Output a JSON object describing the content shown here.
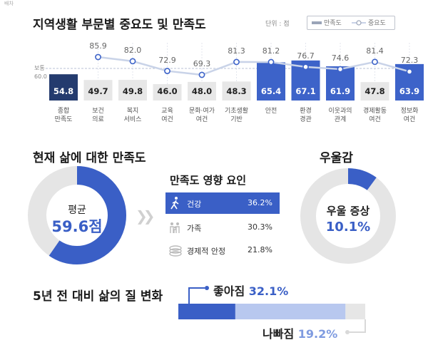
{
  "top_label": "배차",
  "chart1": {
    "title": "지역생활 부문별 중요도 및 만족도",
    "unit_label": "단위 : 점",
    "legend_sat": "만족도",
    "legend_imp": "중요도",
    "ref_label": "보통",
    "ref_value": "60.0"
  },
  "chart_data": [
    {
      "type": "bar",
      "title": "지역생활 부문별 중요도 및 만족도",
      "categories": [
        "종합 만족도",
        "보건 의료",
        "복지 서비스",
        "교육 여건",
        "문화·여가 여건",
        "기초생활 기반",
        "안전",
        "환경 경관",
        "이웃과의 관계",
        "경제활동 여건",
        "정보화 여건"
      ],
      "category_lines": [
        [
          "종합",
          "만족도"
        ],
        [
          "보건",
          "의료"
        ],
        [
          "복지",
          "서비스"
        ],
        [
          "교육",
          "여건"
        ],
        [
          "문화·여가",
          "여건"
        ],
        [
          "기초생활",
          "기반"
        ],
        [
          "안전"
        ],
        [
          "환경",
          "경관"
        ],
        [
          "이웃과의",
          "관계"
        ],
        [
          "경제활동",
          "여건"
        ],
        [
          "정보화",
          "여건"
        ]
      ],
      "series": [
        {
          "name": "만족도",
          "type": "bar",
          "values": [
            54.8,
            49.7,
            49.8,
            46.0,
            48.0,
            48.3,
            65.4,
            67.1,
            61.9,
            47.8,
            63.9
          ],
          "labels": [
            "54.8",
            "49.7",
            "49.8",
            "46.0",
            "48.0",
            "48.3",
            "65.4",
            "67.1",
            "61.9",
            "47.8",
            "63.9"
          ]
        },
        {
          "name": "중요도",
          "type": "line",
          "values": [
            null,
            85.9,
            82.0,
            72.9,
            69.3,
            81.3,
            81.2,
            76.7,
            74.6,
            81.4,
            72.3
          ],
          "labels": [
            "",
            "85.9",
            "82.0",
            "72.9",
            "69.3",
            "81.3",
            "81.2",
            "76.7",
            "74.6",
            "81.4",
            "72.3"
          ]
        }
      ],
      "reference_line": 60.0,
      "highlight_colors": {
        "total": "#243b6e",
        "above_ref": "#3d63c9",
        "below_ref": "#e7e7e7",
        "importance_line": "#c9d3e8",
        "importance_marker": "#3d63c9"
      }
    },
    {
      "type": "pie",
      "title": "현재 삶에 대한 만족도",
      "values": [
        59.6,
        40.4
      ],
      "center_label": "평균",
      "center_value": "59.6점",
      "colors": [
        "#3a5fc6",
        "#e5e5e5"
      ]
    },
    {
      "type": "pie",
      "title": "우울감",
      "values": [
        10.1,
        89.9
      ],
      "center_label": "우울 증상",
      "center_value": "10.1%",
      "colors": [
        "#3a5fc6",
        "#e5e5e5"
      ]
    },
    {
      "type": "bar",
      "title": "5년 전 대비 삶의 질 변화",
      "categories": [
        "좋아짐",
        "나빠짐"
      ],
      "values": [
        32.1,
        19.2
      ],
      "labels": [
        "좋아짐 32.1%",
        "나빠짐 19.2%"
      ],
      "colors": [
        "#3a5fc6",
        "#b8c8ef",
        "#e6e6e6"
      ]
    }
  ],
  "section2": {
    "title": "현재 삶에 대한 만족도",
    "center_label": "평균",
    "center_value": "59.6점"
  },
  "factors": {
    "title": "만족도 영향 요인",
    "items": [
      {
        "name": "건강",
        "value": "36.2%",
        "icon": "walking-person-icon"
      },
      {
        "name": "가족",
        "value": "30.3%",
        "icon": "family-icon"
      },
      {
        "name": "경제적 안정",
        "value": "21.8%",
        "icon": "coins-icon"
      }
    ]
  },
  "depression": {
    "title": "우울감",
    "center_label": "우울 증상",
    "center_value": "10.1%"
  },
  "change": {
    "title": "5년 전 대비 삶의 질 변화",
    "better_label": "좋아짐",
    "better_value": "32.1%",
    "worse_label": "나빠짐",
    "worse_value": "19.2%"
  },
  "colors": {
    "accent": "#3a5fc6",
    "dark": "#243b6e",
    "light_bar": "#e7e7e7",
    "light_blue": "#b8c8ef"
  }
}
